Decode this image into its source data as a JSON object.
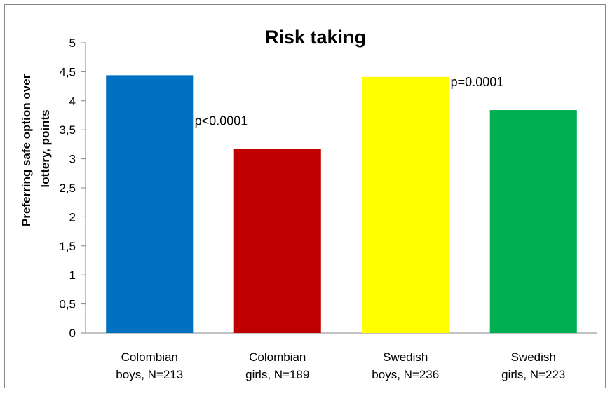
{
  "chart_data": {
    "type": "bar",
    "title": "Risk taking",
    "ylabel": "Preferring safe option over lottery, points",
    "ylabel_lines": [
      "Preferring safe option over",
      "lottery, points"
    ],
    "xlabel": "",
    "ylim": [
      0,
      5
    ],
    "yticks": [
      "0",
      "0,5",
      "1",
      "1,5",
      "2",
      "2,5",
      "3",
      "3,5",
      "4",
      "4,5",
      "5"
    ],
    "ytick_values": [
      0,
      0.5,
      1,
      1.5,
      2,
      2.5,
      3,
      3.5,
      4,
      4.5,
      5
    ],
    "grid": false,
    "legend": "none",
    "categories": [
      [
        "Colombian",
        "boys, N=213"
      ],
      [
        "Colombian",
        "girls, N=189"
      ],
      [
        "Swedish",
        "boys, N=236"
      ],
      [
        "Swedish",
        "girls, N=223"
      ]
    ],
    "values": [
      4.44,
      3.17,
      4.41,
      3.84
    ],
    "colors": [
      "#0070c0",
      "#c00000",
      "#ffff00",
      "#00b050"
    ],
    "annotations": [
      {
        "text": "p<0.0001",
        "near_category": 1
      },
      {
        "text": "p=0.0001",
        "near_category": 3
      }
    ]
  }
}
